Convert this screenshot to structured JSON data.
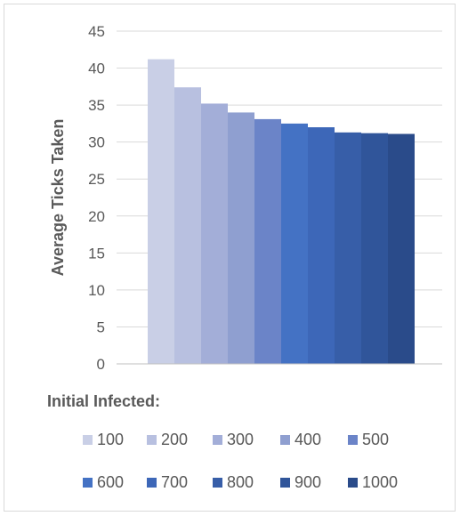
{
  "chart_data": {
    "type": "bar",
    "title": "",
    "xlabel": "",
    "ylabel": "Average Ticks Taken",
    "ylim": [
      0,
      45
    ],
    "yticks": [
      0,
      5,
      10,
      15,
      20,
      25,
      30,
      35,
      40,
      45
    ],
    "grid": true,
    "legend_title": "Initial Infected:",
    "legend_position": "bottom",
    "series": [
      {
        "name": "100",
        "value": 41.2,
        "color": "#c9cfe6"
      },
      {
        "name": "200",
        "value": 37.4,
        "color": "#b8c0e0"
      },
      {
        "name": "300",
        "value": 35.2,
        "color": "#a3aed8"
      },
      {
        "name": "400",
        "value": 34.0,
        "color": "#8f9fd0"
      },
      {
        "name": "500",
        "value": 33.1,
        "color": "#6b84c8"
      },
      {
        "name": "600",
        "value": 32.5,
        "color": "#4472c4"
      },
      {
        "name": "700",
        "value": 32.0,
        "color": "#3d67b8"
      },
      {
        "name": "800",
        "value": 31.3,
        "color": "#375ea8"
      },
      {
        "name": "900",
        "value": 31.2,
        "color": "#30559a"
      },
      {
        "name": "1000",
        "value": 31.1,
        "color": "#2a4b8a"
      }
    ]
  }
}
